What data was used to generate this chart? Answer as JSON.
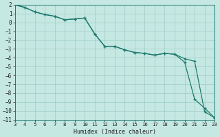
{
  "xlabel": "Humidex (Indice chaleur)",
  "line_color": "#1e7a6e",
  "bg_color": "#c5e8e2",
  "grid_color": "#9dccc4",
  "x_line1": [
    3,
    4,
    5,
    6,
    7,
    8,
    9,
    10,
    11,
    12,
    13,
    14,
    15,
    16,
    17,
    18,
    19,
    20,
    21,
    22,
    23
  ],
  "y_line1": [
    2.0,
    1.7,
    1.2,
    0.9,
    0.7,
    0.3,
    0.4,
    0.5,
    -1.3,
    -2.7,
    -2.7,
    -3.1,
    -3.4,
    -3.5,
    -3.7,
    -3.5,
    -3.6,
    -4.1,
    -4.4,
    -10.1,
    -10.8
  ],
  "x_line2": [
    3,
    4,
    5,
    6,
    7,
    8,
    9,
    10,
    11,
    12,
    13,
    14,
    15,
    16,
    17,
    18,
    19,
    20,
    21,
    22,
    23
  ],
  "y_line2": [
    2.0,
    1.7,
    1.2,
    0.9,
    0.7,
    0.3,
    0.4,
    0.5,
    -1.3,
    -2.7,
    -2.7,
    -3.1,
    -3.4,
    -3.5,
    -3.7,
    -3.5,
    -3.6,
    -4.5,
    -8.7,
    -9.7,
    -10.8
  ],
  "xlim": [
    3,
    23
  ],
  "ylim": [
    -11,
    2
  ],
  "yticks": [
    2,
    1,
    0,
    -1,
    -2,
    -3,
    -4,
    -5,
    -6,
    -7,
    -8,
    -9,
    -10,
    -11
  ],
  "xticks": [
    3,
    4,
    5,
    6,
    7,
    8,
    9,
    10,
    11,
    12,
    13,
    14,
    15,
    16,
    17,
    18,
    19,
    20,
    21,
    22,
    23
  ],
  "markersize": 2.5,
  "linewidth": 0.9
}
